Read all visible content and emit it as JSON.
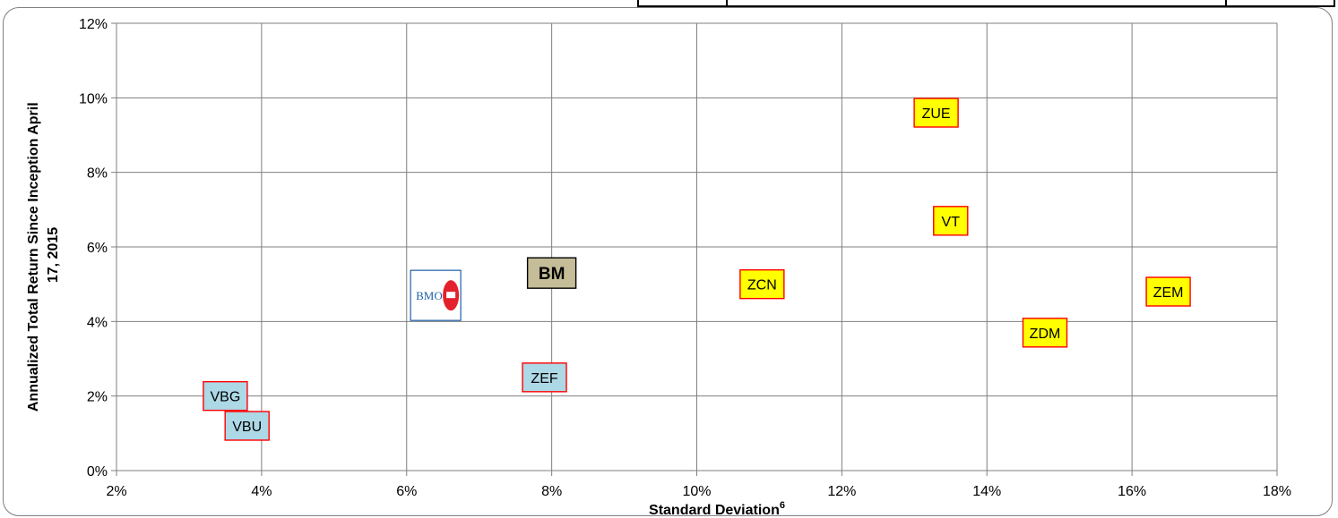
{
  "chart_data": {
    "type": "scatter",
    "title": "",
    "xlabel": "Standard Deviation",
    "xlabel_superscript": "6",
    "ylabel": "Annualized Total Return Since Inception April 17, 2015",
    "ylabel_lines": [
      "Annualized Total Return Since Inception April",
      "17, 2015"
    ],
    "xlim": [
      2,
      18
    ],
    "ylim": [
      0,
      12
    ],
    "x_ticks": [
      2,
      4,
      6,
      8,
      10,
      12,
      14,
      16,
      18
    ],
    "y_ticks": [
      0,
      2,
      4,
      6,
      8,
      10,
      12
    ],
    "x_tick_labels": [
      "2%",
      "4%",
      "6%",
      "8%",
      "10%",
      "12%",
      "14%",
      "16%",
      "18%"
    ],
    "y_tick_labels": [
      "0%",
      "2%",
      "4%",
      "6%",
      "8%",
      "10%",
      "12%"
    ],
    "grid": true,
    "legend": "none",
    "points": [
      {
        "label": "VBG",
        "x": 3.5,
        "y": 2.0,
        "style": "blue"
      },
      {
        "label": "VBU",
        "x": 3.8,
        "y": 1.2,
        "style": "blue"
      },
      {
        "label": "ZEF",
        "x": 7.9,
        "y": 2.5,
        "style": "blue"
      },
      {
        "label": "",
        "x": 6.4,
        "y": 4.7,
        "style": "bmo-logo"
      },
      {
        "label": "BM",
        "x": 8.0,
        "y": 5.3,
        "style": "benchmark"
      },
      {
        "label": "ZCN",
        "x": 10.9,
        "y": 5.0,
        "style": "yellow"
      },
      {
        "label": "ZUE",
        "x": 13.3,
        "y": 9.6,
        "style": "yellow"
      },
      {
        "label": "VT",
        "x": 13.5,
        "y": 6.7,
        "style": "yellow"
      },
      {
        "label": "ZDM",
        "x": 14.8,
        "y": 3.7,
        "style": "yellow"
      },
      {
        "label": "ZEM",
        "x": 16.5,
        "y": 4.8,
        "style": "yellow"
      }
    ],
    "logo_text": "BMO",
    "colors": {
      "blue_fill": "#add8e6",
      "yellow_fill": "#ffff00",
      "label_border": "#ff0000",
      "benchmark_fill": "#c4bd97",
      "benchmark_border": "#000000",
      "grid": "#7f7f7f",
      "logo_blue": "#1f5fa8",
      "logo_red": "#e3212c"
    }
  }
}
